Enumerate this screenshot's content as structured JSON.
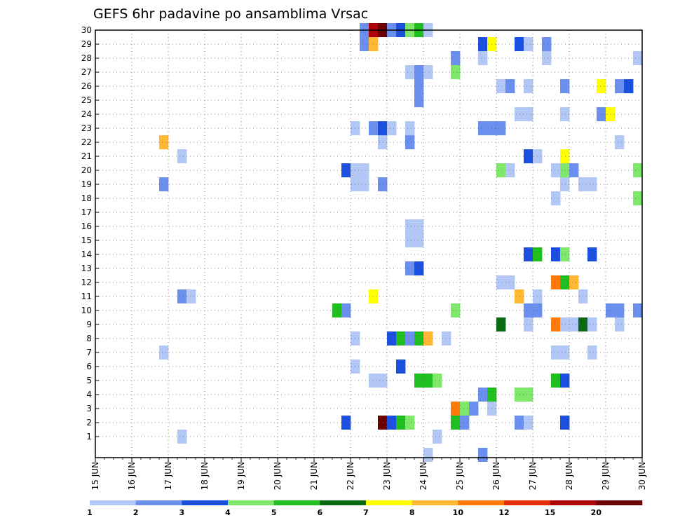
{
  "chart_data": {
    "type": "heatmap",
    "title": "GEFS 6hr padavine po ansamblima Vrsac",
    "x_tick_labels": [
      "15 JUN",
      "16 JUN",
      "17 JUN",
      "18 JUN",
      "19 JUN",
      "20 JUN",
      "21 JUN",
      "22 JUN",
      "23 JUN",
      "24 JUN",
      "25 JUN",
      "26 JUN",
      "27 JUN",
      "28 JUN",
      "29 JUN",
      "30 JUN"
    ],
    "x_unit": "6-hour step from 15 JUN 00Z",
    "xlim": [
      0,
      60
    ],
    "y_tick_labels": [
      "1",
      "2",
      "3",
      "4",
      "5",
      "6",
      "7",
      "8",
      "9",
      "10",
      "11",
      "12",
      "13",
      "14",
      "15",
      "16",
      "17",
      "18",
      "19",
      "20",
      "21",
      "22",
      "23",
      "24",
      "25",
      "26",
      "27",
      "28",
      "29",
      "30"
    ],
    "ylim": [
      0,
      30
    ],
    "grid": true,
    "colorbar": {
      "labels": [
        "1",
        "2",
        "3",
        "4",
        "5",
        "6",
        "7",
        "8",
        "10",
        "12",
        "15",
        "20"
      ],
      "colors": [
        "#b3c7f7",
        "#6a8fef",
        "#1b4fe0",
        "#7fe86a",
        "#1fbf1f",
        "#0a6a14",
        "#ffff00",
        "#ffb833",
        "#ff7a0a",
        "#e62a0a",
        "#b0000a",
        "#6a0000"
      ]
    },
    "cells": [
      [
        29,
        30,
        1
      ],
      [
        30,
        30,
        10
      ],
      [
        31,
        30,
        11
      ],
      [
        32,
        30,
        1
      ],
      [
        33,
        30,
        2
      ],
      [
        34,
        30,
        3
      ],
      [
        35,
        30,
        4
      ],
      [
        36,
        30,
        0
      ],
      [
        29,
        29,
        1
      ],
      [
        30,
        29,
        7
      ],
      [
        42,
        29,
        2
      ],
      [
        43,
        29,
        6
      ],
      [
        46,
        29,
        2
      ],
      [
        47,
        29,
        0
      ],
      [
        49,
        29,
        1
      ],
      [
        39,
        28,
        1
      ],
      [
        42,
        28,
        0
      ],
      [
        49,
        28,
        0
      ],
      [
        59,
        28,
        0
      ],
      [
        34,
        27,
        0
      ],
      [
        35,
        27,
        1
      ],
      [
        36,
        27,
        0
      ],
      [
        39,
        27,
        3
      ],
      [
        35,
        26,
        1
      ],
      [
        44,
        26,
        0
      ],
      [
        45,
        26,
        1
      ],
      [
        47,
        26,
        0
      ],
      [
        51,
        26,
        1
      ],
      [
        55,
        26,
        6
      ],
      [
        57,
        26,
        1
      ],
      [
        58,
        26,
        2
      ],
      [
        35,
        25,
        1
      ],
      [
        46,
        24,
        0
      ],
      [
        47,
        24,
        0
      ],
      [
        51,
        24,
        0
      ],
      [
        55,
        24,
        1
      ],
      [
        56,
        24,
        6
      ],
      [
        28,
        23,
        0
      ],
      [
        30,
        23,
        1
      ],
      [
        31,
        23,
        2
      ],
      [
        32,
        23,
        0
      ],
      [
        34,
        23,
        0
      ],
      [
        42,
        23,
        1
      ],
      [
        43,
        23,
        1
      ],
      [
        44,
        23,
        1
      ],
      [
        7,
        22,
        7
      ],
      [
        31,
        22,
        0
      ],
      [
        34,
        22,
        1
      ],
      [
        57,
        22,
        0
      ],
      [
        9,
        21,
        0
      ],
      [
        47,
        21,
        2
      ],
      [
        48,
        21,
        0
      ],
      [
        51,
        21,
        6
      ],
      [
        27,
        20,
        2
      ],
      [
        28,
        20,
        0
      ],
      [
        29,
        20,
        0
      ],
      [
        44,
        20,
        3
      ],
      [
        45,
        20,
        0
      ],
      [
        50,
        20,
        0
      ],
      [
        51,
        20,
        3
      ],
      [
        52,
        20,
        1
      ],
      [
        59,
        20,
        3
      ],
      [
        7,
        19,
        1
      ],
      [
        28,
        19,
        0
      ],
      [
        29,
        19,
        0
      ],
      [
        31,
        19,
        1
      ],
      [
        51,
        19,
        0
      ],
      [
        53,
        19,
        0
      ],
      [
        54,
        19,
        0
      ],
      [
        50,
        18,
        0
      ],
      [
        59,
        18,
        3
      ],
      [
        34,
        16,
        0
      ],
      [
        35,
        16,
        0
      ],
      [
        34,
        15,
        0
      ],
      [
        35,
        15,
        0
      ],
      [
        47,
        14,
        2
      ],
      [
        48,
        14,
        4
      ],
      [
        50,
        14,
        2
      ],
      [
        51,
        14,
        3
      ],
      [
        54,
        14,
        2
      ],
      [
        34,
        13,
        1
      ],
      [
        35,
        13,
        2
      ],
      [
        44,
        12,
        0
      ],
      [
        45,
        12,
        0
      ],
      [
        50,
        12,
        8
      ],
      [
        51,
        12,
        4
      ],
      [
        52,
        12,
        7
      ],
      [
        9,
        11,
        1
      ],
      [
        10,
        11,
        0
      ],
      [
        30,
        11,
        6
      ],
      [
        46,
        11,
        7
      ],
      [
        48,
        11,
        0
      ],
      [
        53,
        11,
        0
      ],
      [
        26,
        10,
        4
      ],
      [
        27,
        10,
        1
      ],
      [
        39,
        10,
        3
      ],
      [
        47,
        10,
        1
      ],
      [
        48,
        10,
        1
      ],
      [
        56,
        10,
        1
      ],
      [
        57,
        10,
        1
      ],
      [
        59,
        10,
        1
      ],
      [
        44,
        9,
        5
      ],
      [
        47,
        9,
        0
      ],
      [
        50,
        9,
        8
      ],
      [
        51,
        9,
        0
      ],
      [
        52,
        9,
        0
      ],
      [
        53,
        9,
        5
      ],
      [
        54,
        9,
        0
      ],
      [
        57,
        9,
        0
      ],
      [
        28,
        8,
        0
      ],
      [
        32,
        8,
        2
      ],
      [
        33,
        8,
        4
      ],
      [
        34,
        8,
        1
      ],
      [
        35,
        8,
        4
      ],
      [
        36,
        8,
        7
      ],
      [
        38,
        8,
        0
      ],
      [
        7,
        7,
        0
      ],
      [
        50,
        7,
        0
      ],
      [
        51,
        7,
        0
      ],
      [
        54,
        7,
        0
      ],
      [
        28,
        6,
        0
      ],
      [
        33,
        6,
        2
      ],
      [
        30,
        5,
        0
      ],
      [
        31,
        5,
        0
      ],
      [
        35,
        5,
        4
      ],
      [
        36,
        5,
        4
      ],
      [
        37,
        5,
        3
      ],
      [
        50,
        5,
        4
      ],
      [
        51,
        5,
        2
      ],
      [
        42,
        4,
        1
      ],
      [
        43,
        4,
        4
      ],
      [
        46,
        4,
        3
      ],
      [
        47,
        4,
        3
      ],
      [
        39,
        3,
        8
      ],
      [
        40,
        3,
        3
      ],
      [
        41,
        3,
        1
      ],
      [
        43,
        3,
        0
      ],
      [
        27,
        2,
        2
      ],
      [
        31,
        2,
        11
      ],
      [
        32,
        2,
        2
      ],
      [
        33,
        2,
        4
      ],
      [
        34,
        2,
        3
      ],
      [
        39,
        2,
        4
      ],
      [
        40,
        2,
        1
      ],
      [
        46,
        2,
        1
      ],
      [
        47,
        2,
        0
      ],
      [
        51,
        2,
        2
      ],
      [
        9,
        1,
        0
      ],
      [
        37,
        1,
        0
      ],
      [
        36,
        0,
        0
      ],
      [
        42,
        0,
        1
      ]
    ]
  }
}
